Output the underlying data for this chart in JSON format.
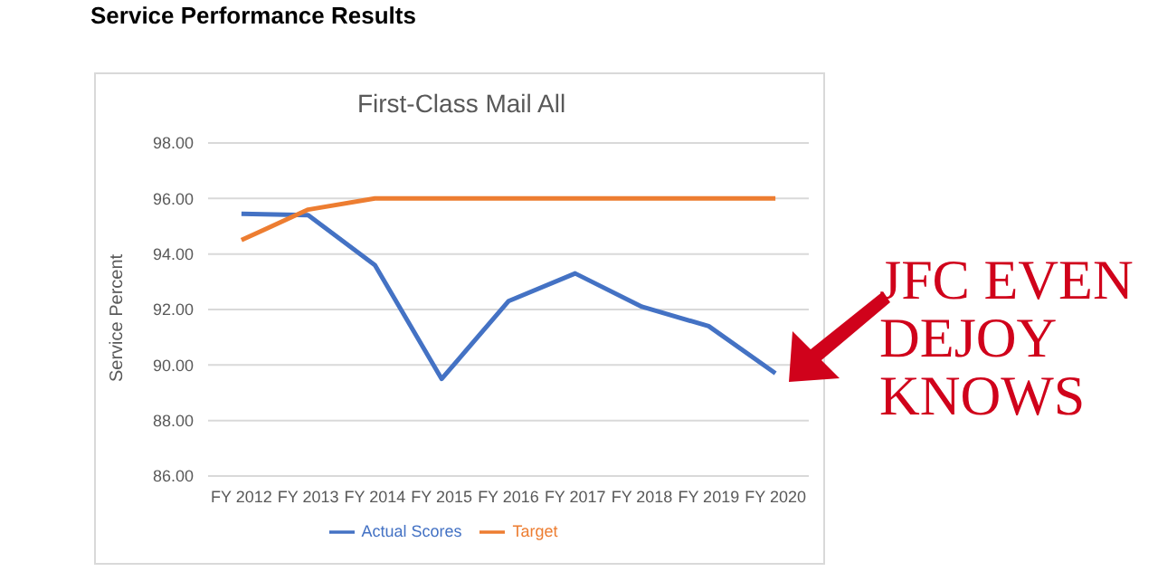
{
  "chart_data": {
    "type": "line",
    "title": "Service Performance Results",
    "subtitle": "First-Class Mail All",
    "ylabel": "Service Percent",
    "categories": [
      "FY 2012",
      "FY 2013",
      "FY 2014",
      "FY 2015",
      "FY 2016",
      "FY 2017",
      "FY 2018",
      "FY 2019",
      "FY 2020"
    ],
    "series": [
      {
        "name": "Actual Scores",
        "color": "#4472c4",
        "values": [
          95.45,
          95.4,
          93.6,
          89.5,
          92.3,
          93.3,
          92.1,
          91.4,
          89.7
        ]
      },
      {
        "name": "Target",
        "color": "#ed7d31",
        "values": [
          94.5,
          95.6,
          96,
          96,
          96,
          96,
          96,
          96,
          96
        ]
      }
    ],
    "ylim": [
      86,
      98
    ],
    "yticks": [
      {
        "value": 86,
        "label": "86.00"
      },
      {
        "value": 88,
        "label": "88.00"
      },
      {
        "value": 90,
        "label": "90.00"
      },
      {
        "value": 92,
        "label": "92.00"
      },
      {
        "value": 94,
        "label": "94.00"
      },
      {
        "value": 96,
        "label": "96.00"
      },
      {
        "value": 98,
        "label": "98.00"
      }
    ],
    "grid": "y",
    "legend": "bottom",
    "marker": "none",
    "line_style": "solid",
    "annotations": [
      {
        "text": "JFC EVEN DEJOY KNOWS",
        "x": "FY 2020",
        "y": 89.7
      }
    ]
  }
}
